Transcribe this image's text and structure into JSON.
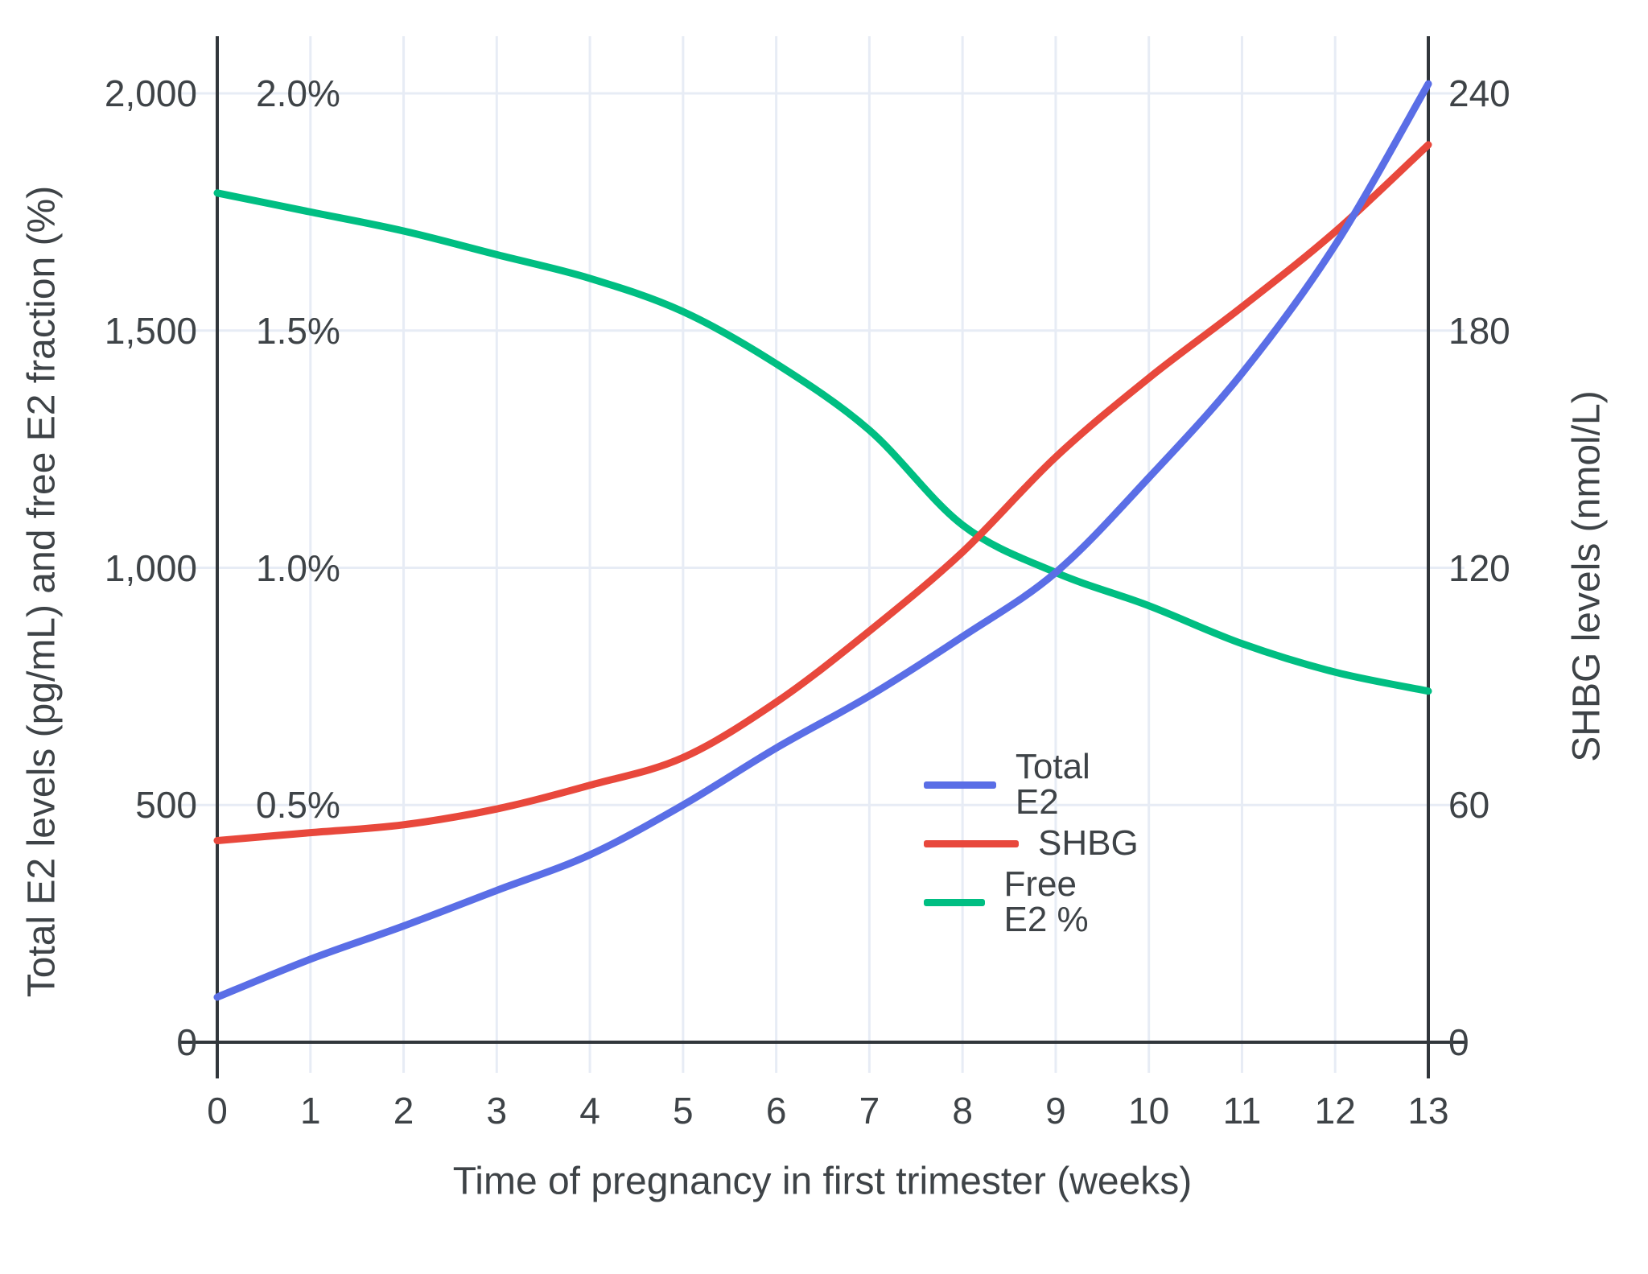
{
  "chart_data": {
    "type": "line",
    "xlabel": "Time of pregnancy in first trimester (weeks)",
    "x": [
      0,
      1,
      2,
      3,
      4,
      5,
      6,
      7,
      8,
      9,
      10,
      11,
      12,
      13
    ],
    "x_tick_labels": [
      "0",
      "1",
      "2",
      "3",
      "4",
      "5",
      "6",
      "7",
      "8",
      "9",
      "10",
      "11",
      "12",
      "13"
    ],
    "left_axis": {
      "title": "Total E2 levels (pg/mL) and free E2 fraction (%)",
      "tick_labels": [
        "0",
        "500",
        "1,000",
        "1,500",
        "2,000"
      ],
      "tick_values": [
        0,
        500,
        1000,
        1500,
        2000
      ],
      "range": [
        0,
        2120
      ]
    },
    "percent_axis": {
      "note": "free E2 fraction labels drawn inside plot, share left axis scale (2000 pg/mL = 2.0%)",
      "tick_labels": [
        "0.5%",
        "1.0%",
        "1.5%",
        "2.0%"
      ],
      "tick_values": [
        500,
        1000,
        1500,
        2000
      ]
    },
    "right_axis": {
      "title": "SHBG levels (nmol/L)",
      "tick_labels": [
        "0",
        "60",
        "120",
        "180",
        "240"
      ],
      "tick_values": [
        0,
        60,
        120,
        180,
        240
      ],
      "range": [
        0,
        254
      ]
    },
    "series": [
      {
        "name": "Total E2",
        "axis": "left",
        "color": "#5A6EE6",
        "values": [
          95,
          175,
          245,
          320,
          395,
          500,
          620,
          730,
          855,
          990,
          1190,
          1410,
          1680,
          2020
        ]
      },
      {
        "name": "SHBG",
        "axis": "right",
        "color": "#E8483C",
        "values": [
          51,
          53,
          55,
          59,
          65,
          72,
          86,
          104,
          124,
          148,
          168,
          186,
          205,
          227
        ]
      },
      {
        "name": "Free E2 %",
        "axis": "percent",
        "color": "#00BE82",
        "values": [
          1.79,
          1.75,
          1.71,
          1.66,
          1.61,
          1.54,
          1.43,
          1.29,
          1.09,
          0.99,
          0.92,
          0.84,
          0.78,
          0.74
        ]
      }
    ],
    "legend": [
      "Total E2",
      "SHBG",
      "Free E2 %"
    ],
    "grid": true,
    "legend_position": "inside-right-middle"
  },
  "colors": {
    "grid": "#E7ECF5",
    "axis": "#31363B",
    "text": "#3E4347",
    "background": "#FFFFFF"
  }
}
